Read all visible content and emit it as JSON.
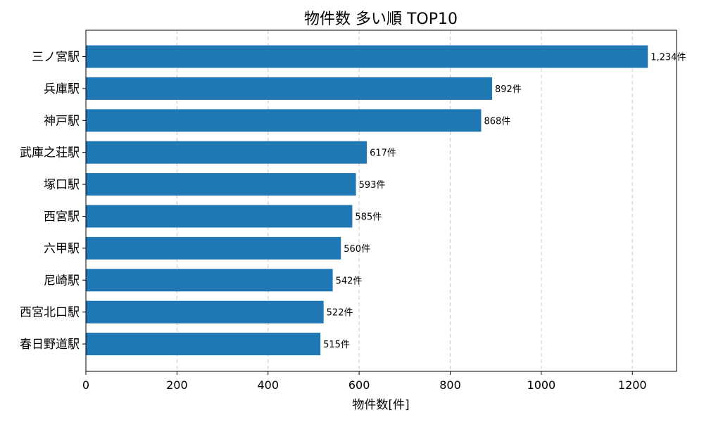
{
  "chart_data": {
    "type": "bar",
    "orientation": "horizontal",
    "title": "物件数 多い順 TOP10",
    "xlabel": "物件数[件]",
    "ylabel": "",
    "categories": [
      "三ノ宮駅",
      "兵庫駅",
      "神戸駅",
      "武庫之荘駅",
      "塚口駅",
      "西宮駅",
      "六甲駅",
      "尼崎駅",
      "西宮北口駅",
      "春日野道駅"
    ],
    "values": [
      1234,
      892,
      868,
      617,
      593,
      585,
      560,
      542,
      522,
      515
    ],
    "data_labels": [
      "1,234件",
      "892件",
      "868件",
      "617件",
      "593件",
      "585件",
      "560件",
      "542件",
      "522件",
      "515件"
    ],
    "xlim": [
      0,
      1297
    ],
    "xticks": [
      0,
      200,
      400,
      600,
      800,
      1000,
      1200
    ],
    "grid": "x-dashed",
    "bar_color": "#1f77b4"
  }
}
